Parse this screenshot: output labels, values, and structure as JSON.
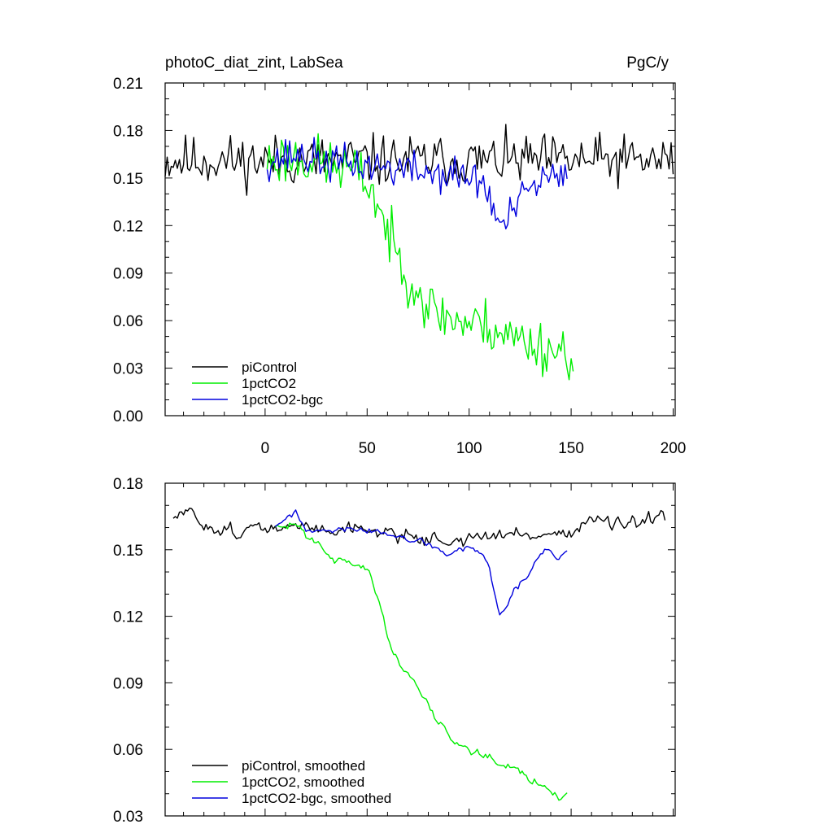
{
  "colors": {
    "piControl": "#000000",
    "1pctCO2": "#00ee00",
    "1pctCO2-bgc": "#0000dd"
  },
  "chart_data": [
    {
      "type": "line",
      "title": "photoC_diat_zint, LabSea",
      "units": "PgC/y",
      "xlim": [
        -49,
        201
      ],
      "ylim": [
        0.0,
        0.21
      ],
      "yticks": [
        "0.00",
        "0.03",
        "0.06",
        "0.09",
        "0.12",
        "0.15",
        "0.18",
        "0.21"
      ],
      "xticks": [
        "0",
        "50",
        "100",
        "150",
        "200"
      ],
      "legend_position": "lower-left",
      "series": [
        {
          "name": "piControl",
          "generator": {
            "x0": -49,
            "x1": 200,
            "base": 0.161,
            "noise": 0.016,
            "seed": 11,
            "smooth": 0
          }
        },
        {
          "name": "1pctCO2",
          "generator": {
            "x0": 1,
            "x1": 151,
            "base": 0.161,
            "noise": 0.017,
            "seed": 23,
            "smooth": 0,
            "trend": [
              [
                1,
                0.161
              ],
              [
                15,
                0.163
              ],
              [
                30,
                0.159
              ],
              [
                42,
                0.155
              ],
              [
                50,
                0.148
              ],
              [
                55,
                0.135
              ],
              [
                60,
                0.115
              ],
              [
                65,
                0.1
              ],
              [
                70,
                0.09
              ],
              [
                75,
                0.08
              ],
              [
                80,
                0.068
              ],
              [
                90,
                0.062
              ],
              [
                100,
                0.058
              ],
              [
                110,
                0.057
              ],
              [
                120,
                0.05
              ],
              [
                130,
                0.046
              ],
              [
                140,
                0.042
              ],
              [
                151,
                0.04
              ]
            ]
          }
        },
        {
          "name": "1pctCO2-bgc",
          "generator": {
            "x0": 1,
            "x1": 148,
            "base": 0.16,
            "noise": 0.012,
            "seed": 37,
            "smooth": 0,
            "trend": [
              [
                1,
                0.161
              ],
              [
                15,
                0.165
              ],
              [
                30,
                0.16
              ],
              [
                50,
                0.158
              ],
              [
                70,
                0.155
              ],
              [
                90,
                0.152
              ],
              [
                100,
                0.15
              ],
              [
                107,
                0.147
              ],
              [
                112,
                0.13
              ],
              [
                116,
                0.118
              ],
              [
                122,
                0.13
              ],
              [
                130,
                0.143
              ],
              [
                138,
                0.15
              ],
              [
                148,
                0.148
              ]
            ]
          }
        }
      ]
    },
    {
      "type": "line",
      "title": "",
      "units": "",
      "xlim": [
        -49,
        201
      ],
      "ylim": [
        0.03,
        0.18
      ],
      "yticks": [
        "0.03",
        "0.06",
        "0.09",
        "0.12",
        "0.15",
        "0.18"
      ],
      "xticks": [],
      "legend_position": "lower-left",
      "series": [
        {
          "name": "piControl, smoothed",
          "generator": {
            "x0": -45,
            "x1": 196,
            "base": 0.16,
            "noise": 0.004,
            "seed": 51,
            "smooth": 1,
            "trend": [
              [
                -45,
                0.163
              ],
              [
                -40,
                0.167
              ],
              [
                -30,
                0.162
              ],
              [
                -20,
                0.159
              ],
              [
                0,
                0.159
              ],
              [
                20,
                0.16
              ],
              [
                40,
                0.16
              ],
              [
                60,
                0.158
              ],
              [
                80,
                0.155
              ],
              [
                95,
                0.154
              ],
              [
                110,
                0.156
              ],
              [
                130,
                0.157
              ],
              [
                150,
                0.158
              ],
              [
                160,
                0.164
              ],
              [
                175,
                0.16
              ],
              [
                196,
                0.164
              ]
            ]
          }
        },
        {
          "name": "1pctCO2, smoothed",
          "generator": {
            "x0": 5,
            "x1": 148,
            "base": 0.16,
            "noise": 0.0025,
            "seed": 63,
            "smooth": 1,
            "trend": [
              [
                5,
                0.159
              ],
              [
                15,
                0.162
              ],
              [
                20,
                0.157
              ],
              [
                25,
                0.155
              ],
              [
                30,
                0.15
              ],
              [
                35,
                0.145
              ],
              [
                42,
                0.145
              ],
              [
                48,
                0.142
              ],
              [
                52,
                0.138
              ],
              [
                55,
                0.128
              ],
              [
                58,
                0.118
              ],
              [
                62,
                0.105
              ],
              [
                67,
                0.097
              ],
              [
                75,
                0.089
              ],
              [
                80,
                0.08
              ],
              [
                85,
                0.072
              ],
              [
                92,
                0.065
              ],
              [
                98,
                0.062
              ],
              [
                105,
                0.058
              ],
              [
                115,
                0.056
              ],
              [
                120,
                0.054
              ],
              [
                125,
                0.05
              ],
              [
                130,
                0.046
              ],
              [
                135,
                0.045
              ],
              [
                140,
                0.042
              ],
              [
                144,
                0.039
              ],
              [
                148,
                0.04
              ]
            ]
          }
        },
        {
          "name": "1pctCO2-bgc, smoothed",
          "generator": {
            "x0": 5,
            "x1": 148,
            "base": 0.16,
            "noise": 0.0018,
            "seed": 77,
            "smooth": 1,
            "trend": [
              [
                5,
                0.161
              ],
              [
                15,
                0.167
              ],
              [
                20,
                0.158
              ],
              [
                30,
                0.158
              ],
              [
                40,
                0.159
              ],
              [
                55,
                0.158
              ],
              [
                70,
                0.155
              ],
              [
                80,
                0.152
              ],
              [
                90,
                0.148
              ],
              [
                100,
                0.151
              ],
              [
                107,
                0.148
              ],
              [
                110,
                0.14
              ],
              [
                113,
                0.128
              ],
              [
                115,
                0.12
              ],
              [
                118,
                0.123
              ],
              [
                122,
                0.132
              ],
              [
                128,
                0.137
              ],
              [
                133,
                0.145
              ],
              [
                137,
                0.15
              ],
              [
                142,
                0.147
              ],
              [
                148,
                0.148
              ]
            ]
          }
        }
      ]
    }
  ]
}
